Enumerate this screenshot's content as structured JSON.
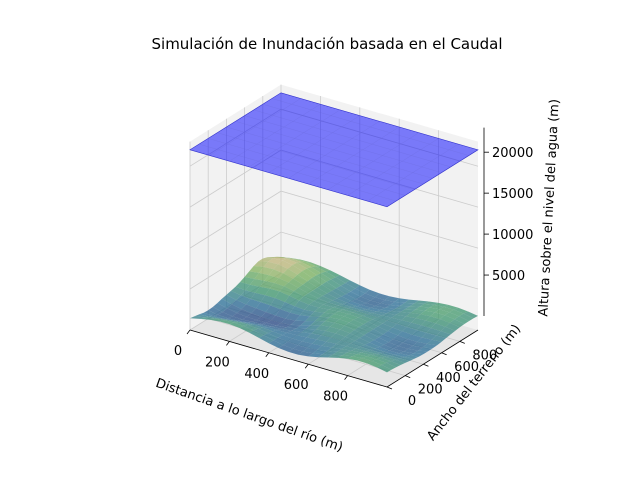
{
  "chart_data": {
    "type": "surface3d",
    "title": "Simulación de Inundación basada en el Caudal",
    "xlabel": "Distancia a lo largo del río (m)",
    "ylabel": "Ancho del terreno (m)",
    "zlabel": "Altura sobre el nivel del agua (m)",
    "xticks": [
      0,
      200,
      400,
      600,
      800
    ],
    "yticks": [
      0,
      200,
      400,
      600,
      800
    ],
    "zticks": [
      5000,
      10000,
      15000,
      20000
    ],
    "xlim": [
      0,
      1000
    ],
    "ylim": [
      0,
      1000
    ],
    "zlim": [
      0,
      23000
    ],
    "grid": true,
    "series": [
      {
        "role": "terrain",
        "colormap": "gist_earth",
        "z_min": 0,
        "z_max": 4500,
        "alpha": 0.6
      },
      {
        "role": "water-plane",
        "z": 22000,
        "color": "#0000ff",
        "alpha": 0.5
      }
    ],
    "colors": {
      "pane": "#f2f2f2",
      "grid": "#cccccc",
      "water": "#0000ff"
    }
  }
}
